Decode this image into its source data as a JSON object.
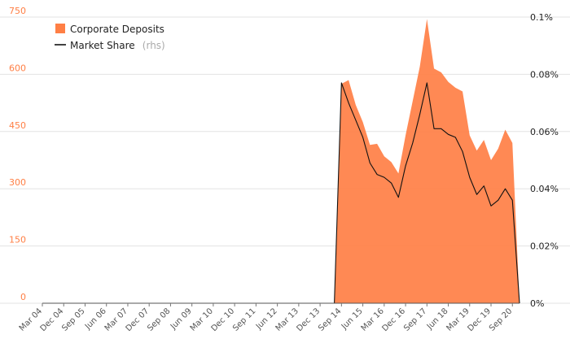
{
  "chart_data": {
    "type": "area",
    "x": [
      "Mar 04",
      "Jun 04",
      "Sep 04",
      "Dec 04",
      "Mar 05",
      "Jun 05",
      "Sep 05",
      "Dec 05",
      "Mar 06",
      "Jun 06",
      "Sep 06",
      "Dec 06",
      "Mar 07",
      "Jun 07",
      "Sep 07",
      "Dec 07",
      "Mar 08",
      "Jun 08",
      "Sep 08",
      "Dec 08",
      "Mar 09",
      "Jun 09",
      "Sep 09",
      "Dec 09",
      "Mar 10",
      "Jun 10",
      "Sep 10",
      "Dec 10",
      "Mar 11",
      "Jun 11",
      "Sep 11",
      "Dec 11",
      "Mar 12",
      "Jun 12",
      "Sep 12",
      "Dec 12",
      "Mar 13",
      "Jun 13",
      "Sep 13",
      "Dec 13",
      "Mar 14",
      "Jun 14",
      "Sep 14",
      "Dec 14",
      "Mar 15",
      "Jun 15",
      "Sep 15",
      "Dec 15",
      "Mar 16",
      "Jun 16",
      "Sep 16",
      "Dec 16",
      "Mar 17",
      "Jun 17",
      "Sep 17",
      "Dec 17",
      "Mar 18",
      "Jun 18",
      "Sep 18",
      "Dec 18",
      "Mar 19",
      "Jun 19",
      "Sep 19",
      "Dec 19",
      "Mar 20",
      "Jun 20",
      "Sep 20",
      "Dec 20"
    ],
    "x_tick_labels": [
      "Mar 04",
      "Dec 04",
      "Sep 05",
      "Jun 06",
      "Mar 07",
      "Dec 07",
      "Sep 08",
      "Jun 09",
      "Mar 10",
      "Dec 10",
      "Sep 11",
      "Jun 12",
      "Mar 13",
      "Dec 13",
      "Sep 14",
      "Jun 15",
      "Mar 16",
      "Dec 16",
      "Sep 17",
      "Jun 18",
      "Mar 19",
      "Dec 19",
      "Sep 20"
    ],
    "series": [
      {
        "name": "Corporate Deposits",
        "axis": "left",
        "type": "area",
        "color": "#ff7f45",
        "values": [
          0,
          0,
          0,
          0,
          0,
          0,
          0,
          0,
          0,
          0,
          0,
          0,
          0,
          0,
          0,
          0,
          0,
          0,
          0,
          0,
          0,
          0,
          0,
          0,
          0,
          0,
          0,
          0,
          0,
          0,
          0,
          0,
          0,
          0,
          0,
          0,
          0,
          0,
          0,
          0,
          0,
          0,
          575,
          585,
          520,
          475,
          415,
          418,
          385,
          370,
          340,
          440,
          530,
          620,
          745,
          615,
          605,
          580,
          565,
          555,
          440,
          400,
          428,
          375,
          405,
          455,
          420,
          0
        ]
      },
      {
        "name": "Market Share",
        "axis": "right",
        "type": "line",
        "color": "#111111",
        "values": [
          0,
          0,
          0,
          0,
          0,
          0,
          0,
          0,
          0,
          0,
          0,
          0,
          0,
          0,
          0,
          0,
          0,
          0,
          0,
          0,
          0,
          0,
          0,
          0,
          0,
          0,
          0,
          0,
          0,
          0,
          0,
          0,
          0,
          0,
          0,
          0,
          0,
          0,
          0,
          0,
          0,
          0,
          0.077,
          0.07,
          0.064,
          0.058,
          0.049,
          0.045,
          0.044,
          0.042,
          0.037,
          0.048,
          0.056,
          0.066,
          0.077,
          0.061,
          0.061,
          0.059,
          0.058,
          0.053,
          0.044,
          0.038,
          0.041,
          0.034,
          0.036,
          0.04,
          0.036,
          0
        ]
      }
    ],
    "y_left": {
      "range": [
        0,
        750
      ],
      "ticks": [
        0,
        150,
        300,
        450,
        600,
        750
      ],
      "tick_labels": [
        "0",
        "150",
        "300",
        "450",
        "600",
        "750"
      ],
      "color": "#ff7f45"
    },
    "y_right": {
      "range": [
        0,
        0.1
      ],
      "ticks": [
        0,
        0.02,
        0.04,
        0.06,
        0.08,
        0.1
      ],
      "tick_labels": [
        "0%",
        "0.02%",
        "0.04%",
        "0.06%",
        "0.08%",
        "0.1%"
      ]
    },
    "legend": {
      "placement": "top-left",
      "items": [
        {
          "label": "Corporate Deposits",
          "suffix": "",
          "marker": "square",
          "color": "#ff7f45"
        },
        {
          "label": "Market Share",
          "suffix": "(rhs)",
          "marker": "line",
          "color": "#111111"
        }
      ]
    },
    "grid": true,
    "grid_color": "#e3e3e3"
  }
}
